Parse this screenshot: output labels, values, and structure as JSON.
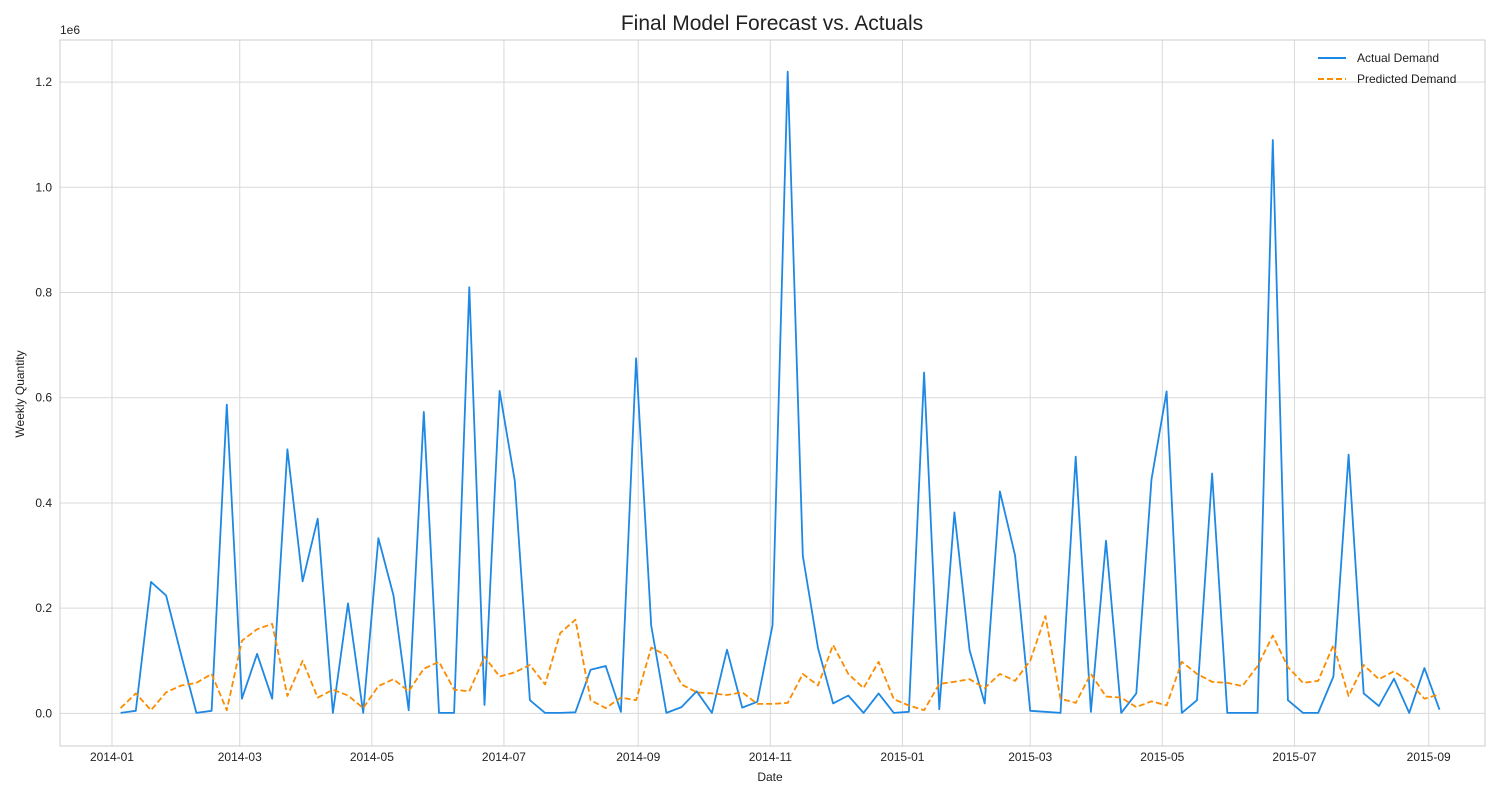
{
  "chart_data": {
    "type": "line",
    "title": "Final Model Forecast vs. Actuals",
    "xlabel": "Date",
    "ylabel": "Weekly Quantity",
    "y_offset_label": "1e6",
    "x_ticks": [
      "2014-01",
      "2014-03",
      "2014-05",
      "2014-07",
      "2014-09",
      "2014-11",
      "2015-01",
      "2015-03",
      "2015-05",
      "2015-07",
      "2015-09"
    ],
    "y_ticks": [
      "0.0",
      "0.2",
      "0.4",
      "0.6",
      "0.8",
      "1.0",
      "1.2"
    ],
    "y_tick_values": [
      0,
      0.2,
      0.4,
      0.6,
      0.8,
      1.0,
      1.2
    ],
    "xlim": [
      "2013-12-08",
      "2015-09-27"
    ],
    "ylim": [
      -0.062,
      1.28
    ],
    "grid": true,
    "legend_position": "top-right",
    "start_date": "2014-01-05",
    "interval_days": 7,
    "series": [
      {
        "name": "Actual Demand",
        "color": "#1e88e5",
        "style": "solid",
        "values": [
          0.001,
          0.005,
          0.25,
          0.224,
          0.11,
          0.001,
          0.005,
          0.587,
          0.028,
          0.113,
          0.028,
          0.502,
          0.251,
          0.37,
          0.001,
          0.209,
          0.001,
          0.333,
          0.224,
          0.006,
          0.573,
          0.001,
          0.001,
          0.81,
          0.016,
          0.613,
          0.442,
          0.025,
          0.001,
          0.001,
          0.002,
          0.083,
          0.09,
          0.003,
          0.675,
          0.167,
          0.001,
          0.012,
          0.042,
          0.001,
          0.121,
          0.011,
          0.022,
          0.167,
          1.22,
          0.3,
          0.124,
          0.019,
          0.034,
          0.001,
          0.038,
          0.001,
          0.003,
          0.648,
          0.008,
          0.382,
          0.12,
          0.019,
          0.422,
          0.3,
          0.005,
          0.003,
          0.001,
          0.488,
          0.003,
          0.328,
          0.001,
          0.038,
          0.445,
          0.612,
          0.001,
          0.025,
          0.456,
          0.001,
          0.001,
          0.001,
          1.09,
          0.025,
          0.001,
          0.001,
          0.07,
          0.492,
          0.038,
          0.014,
          0.066,
          0.001,
          0.086,
          0.007
        ]
      },
      {
        "name": "Predicted Demand",
        "color": "#fb8c00",
        "style": "dashed",
        "values": [
          0.01,
          0.038,
          0.006,
          0.04,
          0.053,
          0.058,
          0.075,
          0.006,
          0.138,
          0.16,
          0.17,
          0.033,
          0.1,
          0.03,
          0.045,
          0.034,
          0.01,
          0.052,
          0.065,
          0.042,
          0.085,
          0.098,
          0.045,
          0.042,
          0.108,
          0.07,
          0.078,
          0.092,
          0.055,
          0.153,
          0.178,
          0.025,
          0.01,
          0.03,
          0.025,
          0.125,
          0.11,
          0.055,
          0.04,
          0.038,
          0.035,
          0.04,
          0.018,
          0.018,
          0.02,
          0.075,
          0.053,
          0.13,
          0.075,
          0.048,
          0.098,
          0.027,
          0.015,
          0.006,
          0.056,
          0.06,
          0.065,
          0.048,
          0.075,
          0.062,
          0.1,
          0.185,
          0.028,
          0.02,
          0.075,
          0.032,
          0.03,
          0.012,
          0.023,
          0.015,
          0.098,
          0.075,
          0.06,
          0.058,
          0.052,
          0.09,
          0.148,
          0.088,
          0.058,
          0.062,
          0.13,
          0.033,
          0.092,
          0.065,
          0.08,
          0.06,
          0.028,
          0.036
        ]
      }
    ]
  }
}
